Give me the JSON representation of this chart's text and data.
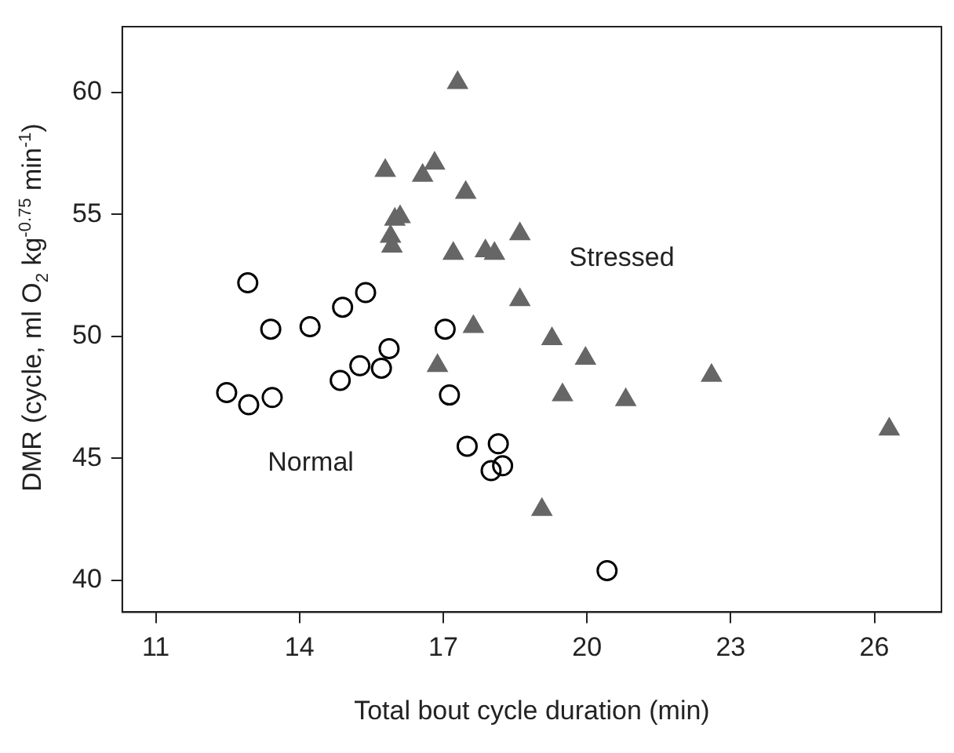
{
  "chart_data": {
    "type": "scatter",
    "xlabel": "Total bout cycle duration (min)",
    "ylabel": "DMR (cycle, ml O$_{2}$ kg$^{-0.75}$ min$^{-1}$)",
    "xlim": [
      10.3,
      27.4
    ],
    "ylim": [
      38.7,
      62.7
    ],
    "xticks": [
      11,
      14,
      17,
      20,
      23,
      26
    ],
    "yticks": [
      40,
      45,
      50,
      55,
      60
    ],
    "grid": false,
    "legend": false,
    "series": [
      {
        "name": "Normal",
        "marker": "circle",
        "color": "#000000",
        "x": [
          12.92,
          13.4,
          14.22,
          14.9,
          15.38,
          17.04,
          15.87,
          15.26,
          15.71,
          14.85,
          12.48,
          12.94,
          13.43,
          17.13,
          17.5,
          18.15,
          18.24,
          18.0,
          20.42
        ],
        "values": [
          52.2,
          50.3,
          50.4,
          51.2,
          51.8,
          50.3,
          49.5,
          48.8,
          48.7,
          48.2,
          47.7,
          47.2,
          47.5,
          47.6,
          45.5,
          45.6,
          44.7,
          44.5,
          40.4
        ]
      },
      {
        "name": "Stressed",
        "marker": "triangle",
        "color": "#666666",
        "x": [
          17.3,
          15.79,
          16.57,
          16.82,
          17.47,
          15.99,
          16.1,
          15.9,
          15.93,
          17.21,
          17.88,
          18.07,
          18.6,
          18.6,
          17.63,
          16.88,
          19.27,
          19.97,
          22.6,
          19.49,
          20.81,
          26.31,
          19.06
        ],
        "values": [
          60.4,
          56.8,
          56.6,
          57.1,
          55.9,
          54.8,
          54.9,
          54.1,
          53.7,
          53.4,
          53.5,
          53.4,
          54.2,
          51.5,
          50.4,
          48.8,
          49.9,
          49.1,
          48.4,
          47.6,
          47.4,
          46.2,
          42.9
        ]
      }
    ]
  }
}
